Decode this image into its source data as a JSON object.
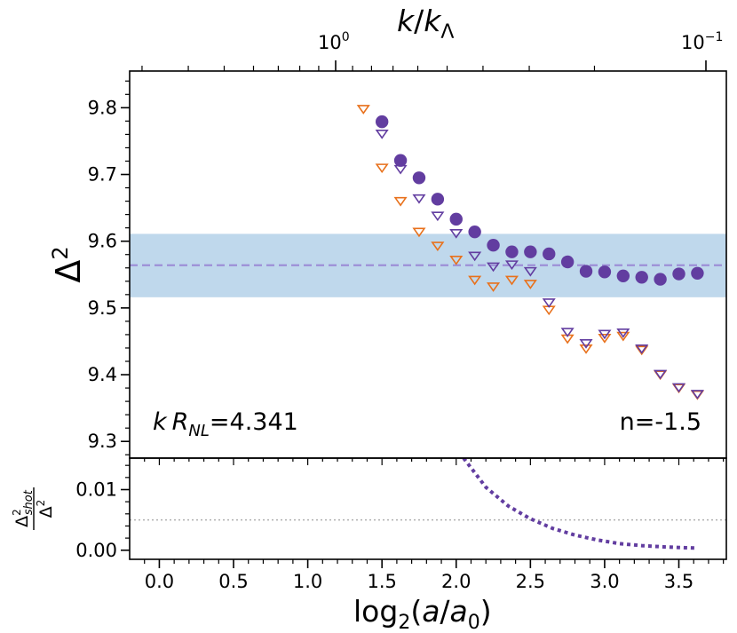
{
  "chart_data": [
    {
      "type": "scatter",
      "panel": "main",
      "xlabel": "log2(a/a0)",
      "ylabel": "Δ²",
      "xlim": [
        -0.2,
        3.82
      ],
      "ylim": [
        9.275,
        9.855
      ],
      "yticks": [
        9.3,
        9.4,
        9.5,
        9.6,
        9.7,
        9.8
      ],
      "yticklabels": [
        "9.3",
        "9.4",
        "9.5",
        "9.6",
        "9.7",
        "9.8"
      ],
      "top_axis": {
        "label": "k/kΛ",
        "ticks": [
          1.0,
          0.1
        ],
        "ticklabels": [
          "10^0",
          "10^-1"
        ]
      },
      "band": {
        "ymin": 9.516,
        "ymax": 9.611,
        "color": "#b8d4ea"
      },
      "hline": {
        "y": 9.564,
        "color": "#9d8fd6",
        "style": "dashed"
      },
      "annotations": {
        "left": "kRNL=4.341",
        "right": "n=-1.5"
      },
      "series": [
        {
          "name": "filled circles",
          "marker": "circle-filled",
          "color": "#623da0",
          "x": [
            1.5,
            1.625,
            1.75,
            1.875,
            2.0,
            2.125,
            2.25,
            2.375,
            2.5,
            2.625,
            2.75,
            2.875,
            3.0,
            3.125,
            3.25,
            3.375,
            3.5,
            3.625
          ],
          "y": [
            9.779,
            9.721,
            9.695,
            9.663,
            9.633,
            9.614,
            9.594,
            9.584,
            9.584,
            9.581,
            9.569,
            9.555,
            9.554,
            9.548,
            9.546,
            9.543,
            9.551,
            9.552
          ]
        },
        {
          "name": "purple open triangles",
          "marker": "triangle-down-open",
          "color": "#623da0",
          "x": [
            1.5,
            1.625,
            1.75,
            1.875,
            2.0,
            2.125,
            2.25,
            2.375,
            2.5,
            2.625,
            2.75,
            2.875,
            3.0,
            3.125,
            3.25,
            3.375,
            3.5,
            3.625
          ],
          "y": [
            9.762,
            9.709,
            9.665,
            9.639,
            9.613,
            9.579,
            9.563,
            9.566,
            9.556,
            9.509,
            9.465,
            9.448,
            9.462,
            9.464,
            9.44,
            9.402,
            9.382,
            9.372
          ]
        },
        {
          "name": "orange open triangles",
          "marker": "triangle-down-open",
          "color": "#e8711c",
          "x": [
            1.375,
            1.5,
            1.625,
            1.75,
            1.875,
            2.0,
            2.125,
            2.25,
            2.375,
            2.5,
            2.625,
            2.75,
            2.875,
            3.0,
            3.125,
            3.25,
            3.375,
            3.5,
            3.625
          ],
          "y": [
            9.799,
            9.711,
            9.661,
            9.615,
            9.594,
            9.573,
            9.543,
            9.533,
            9.543,
            9.537,
            9.498,
            9.455,
            9.44,
            9.456,
            9.459,
            9.438,
            9.401,
            9.381,
            9.371
          ]
        }
      ]
    },
    {
      "type": "line",
      "panel": "residual",
      "xlabel": "log2(a/a0)",
      "ylabel": "Δ²shot/Δ²",
      "xlim": [
        -0.2,
        3.82
      ],
      "ylim": [
        -0.0015,
        0.0152
      ],
      "xticks": [
        0.0,
        0.5,
        1.0,
        1.5,
        2.0,
        2.5,
        3.0,
        3.5
      ],
      "xticklabels": [
        "0.0",
        "0.5",
        "1.0",
        "1.5",
        "2.0",
        "2.5",
        "3.0",
        "3.5"
      ],
      "yticks": [
        0.0,
        0.01
      ],
      "yticklabels": [
        "0.00",
        "0.01"
      ],
      "hline": {
        "y": 0.005,
        "color": "#b0b0b0",
        "style": "dotted"
      },
      "series": [
        {
          "name": "shot noise ratio",
          "style": "dotted",
          "color": "#623da0",
          "x": [
            2.05,
            2.2,
            2.35,
            2.5,
            2.65,
            2.8,
            2.95,
            3.1,
            3.25,
            3.4,
            3.55,
            3.625
          ],
          "y": [
            0.0152,
            0.0104,
            0.0073,
            0.0052,
            0.0036,
            0.0025,
            0.0017,
            0.0011,
            0.00075,
            0.00055,
            0.0004,
            0.00035
          ]
        }
      ]
    }
  ]
}
